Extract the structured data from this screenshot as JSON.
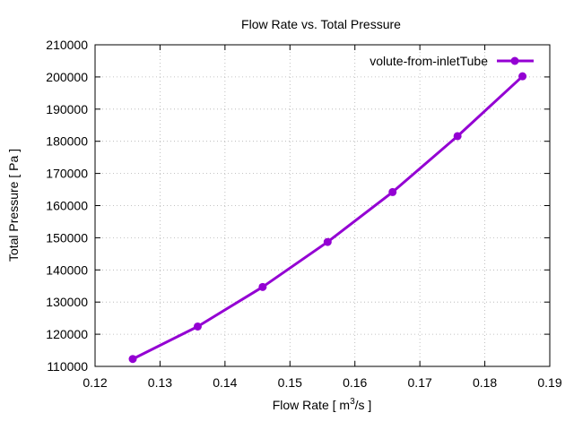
{
  "chart_data": {
    "type": "line",
    "title": "Flow Rate vs. Total Pressure",
    "xlabel_prefix": "Flow Rate [ m",
    "xlabel_sup": "3",
    "xlabel_suffix": "/s ]",
    "ylabel": "Total Pressure [ Pa ]",
    "xlim": [
      0.12,
      0.19
    ],
    "ylim": [
      110000,
      210000
    ],
    "xticks": [
      "0.12",
      "0.13",
      "0.14",
      "0.15",
      "0.16",
      "0.17",
      "0.18",
      "0.19"
    ],
    "yticks": [
      "110000",
      "120000",
      "130000",
      "140000",
      "150000",
      "160000",
      "170000",
      "180000",
      "190000",
      "200000",
      "210000"
    ],
    "grid": true,
    "legend_position": "top-right",
    "series": [
      {
        "name": "volute-from-inletTube",
        "color": "#9400d3",
        "x": [
          0.1258,
          0.1358,
          0.1458,
          0.1558,
          0.1658,
          0.1758,
          0.1858
        ],
        "y": [
          112300,
          122400,
          134700,
          148700,
          164200,
          181600,
          200200
        ]
      }
    ]
  }
}
